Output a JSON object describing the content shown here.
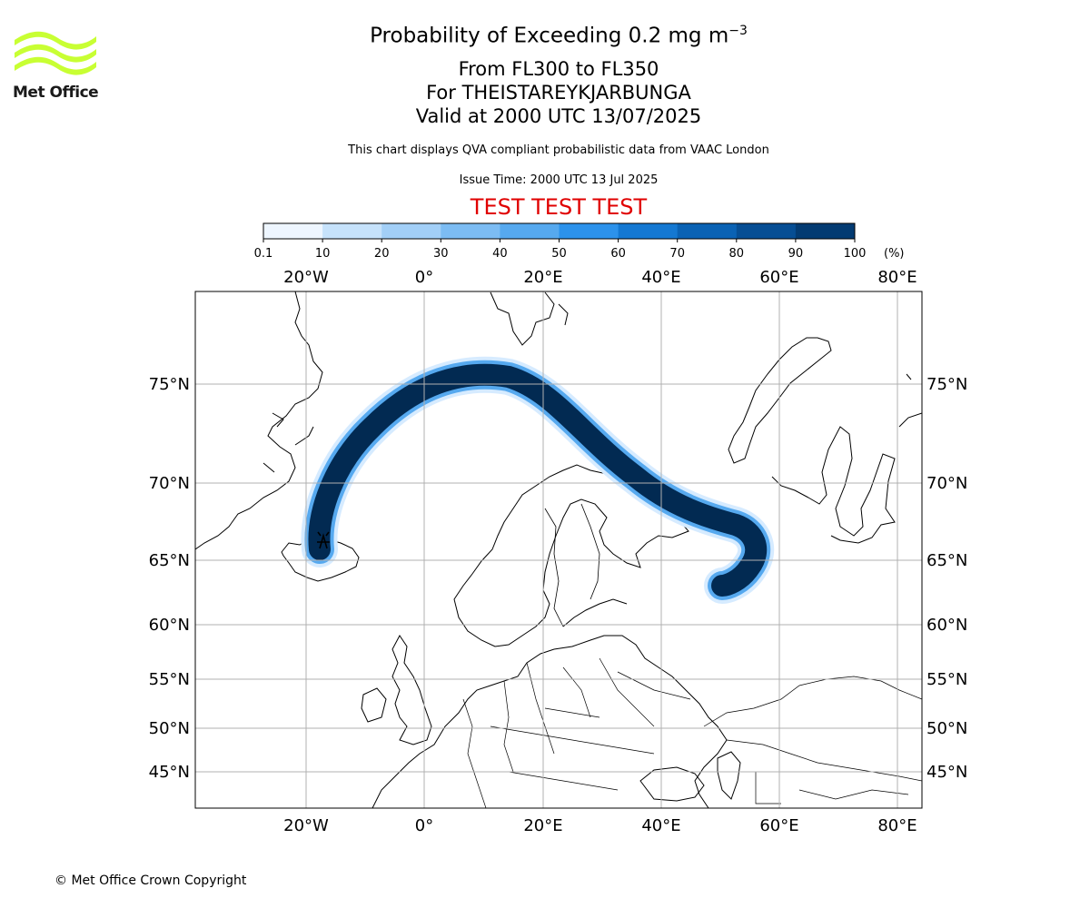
{
  "header": {
    "title_main": "Probability of Exceeding 0.2 mg m",
    "title_sup": "−3",
    "flight_levels": "From FL300 to FL350",
    "volcano": "For THEISTAREYKJARBUNGA",
    "valid_time": "Valid at 2000 UTC 13/07/2025",
    "description": "This chart displays QVA compliant probabilistic data from VAAC London",
    "issue_time": "Issue Time: 2000 UTC 13 Jul 2025",
    "test_banner": "TEST TEST TEST"
  },
  "logo": {
    "text": "Met Office",
    "color": "#c8ff33"
  },
  "colorbar": {
    "ticks": [
      "0.1",
      "10",
      "20",
      "30",
      "40",
      "50",
      "60",
      "70",
      "80",
      "90",
      "100"
    ],
    "unit": "(%)",
    "colors": [
      "#eef6ff",
      "#c6e2fb",
      "#a2cff7",
      "#7cbcf3",
      "#56a9ef",
      "#2c92eb",
      "#1478d2",
      "#0a62b4",
      "#064e94",
      "#033b72",
      "#022a52"
    ]
  },
  "axes": {
    "lon_labels": [
      "20°W",
      "0°",
      "20°E",
      "40°E",
      "60°E",
      "80°E"
    ],
    "lat_labels": [
      "75°N",
      "70°N",
      "65°N",
      "60°N",
      "55°N",
      "50°N",
      "45°N"
    ]
  },
  "colors": {
    "banner": "#e00000",
    "plume_core": "#022a52",
    "grid": "#b0b0b0"
  },
  "footer": {
    "copyright": "© Met Office Crown Copyright"
  }
}
